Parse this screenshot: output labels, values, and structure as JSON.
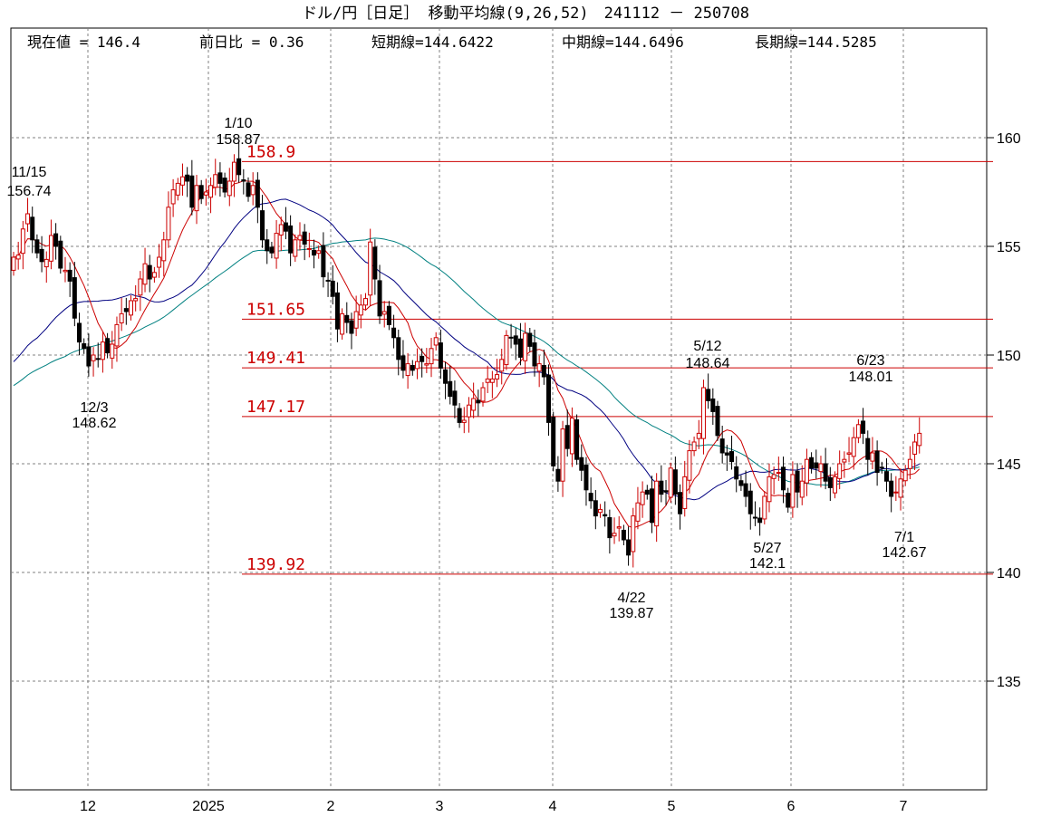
{
  "chart_data": {
    "type": "candlestick",
    "title": "ドル/円［日足］ 移動平均線(9,26,52)　241112 － 250708",
    "info": {
      "current": "現在値 = 146.4",
      "change": "前日比 = 0.36",
      "short": "短期線=144.6422",
      "mid": "中期線=144.6496",
      "long": "長期線=144.5285"
    },
    "ylim": [
      130,
      163
    ],
    "yticks": [
      "135",
      "140",
      "145",
      "150",
      "155",
      "160"
    ],
    "xticks": [
      "12",
      "2025",
      "2",
      "3",
      "4",
      "5",
      "6",
      "7"
    ],
    "levels": [
      158.9,
      151.65,
      149.41,
      147.17,
      139.92
    ],
    "level_labels": [
      "158.9",
      "151.65",
      "149.41",
      "147.17",
      "139.92"
    ],
    "annotations": [
      {
        "date": "11/15",
        "value": "156.74"
      },
      {
        "date": "12/3",
        "value": "148.62"
      },
      {
        "date": "1/10",
        "value": "158.87"
      },
      {
        "date": "4/22",
        "value": "139.87"
      },
      {
        "date": "5/12",
        "value": "148.64"
      },
      {
        "date": "5/27",
        "value": "142.1"
      },
      {
        "date": "6/23",
        "value": "148.01"
      },
      {
        "date": "7/1",
        "value": "142.67"
      }
    ],
    "colors": {
      "up": "#cc0000",
      "down": "#000000",
      "short_ma": "#cc0000",
      "mid_ma": "#000080",
      "long_ma": "#008080",
      "level": "#cc0000",
      "grid": "#808080"
    },
    "series_close": [
      154.5,
      154.6,
      155.8,
      156.5,
      155.3,
      154.7,
      154.3,
      154.4,
      155.5,
      155.0,
      154.0,
      153.9,
      153.4,
      151.7,
      150.6,
      150.3,
      149.5,
      150.0,
      149.8,
      150.6,
      150.1,
      150.5,
      151.4,
      151.9,
      152.0,
      152.5,
      152.6,
      153.5,
      154.2,
      153.5,
      153.8,
      154.5,
      155.3,
      156.8,
      157.6,
      157.9,
      158.2,
      158.0,
      156.8,
      157.8,
      157.2,
      157.5,
      157.8,
      158.3,
      157.9,
      157.5,
      158.0,
      158.87,
      158.3,
      158.0,
      157.3,
      157.8,
      156.8,
      155.3,
      154.8,
      154.7,
      155.6,
      156.0,
      155.7,
      154.7,
      155.3,
      155.5,
      155.1,
      154.9,
      154.6,
      154.8,
      153.6,
      153.4,
      152.7,
      151.2,
      151.9,
      151.5,
      151.0,
      152.0,
      152.3,
      152.6,
      155.2,
      153.5,
      151.8,
      152.0,
      151.4,
      150.8,
      149.8,
      149.3,
      149.6,
      149.3,
      149.7,
      149.7,
      149.6,
      150.3,
      150.8,
      149.4,
      148.7,
      148.1,
      147.7,
      146.9,
      147.0,
      147.7,
      148.0,
      147.8,
      148.5,
      148.9,
      148.9,
      149.1,
      149.8,
      150.9,
      150.8,
      150.5,
      149.9,
      151.0,
      150.4,
      149.5,
      149.6,
      149.0,
      146.9,
      144.9,
      144.2,
      146.6,
      145.7,
      147.1,
      145.2,
      144.7,
      143.8,
      143.3,
      142.6,
      142.9,
      142.6,
      141.6,
      141.8,
      142.1,
      141.5,
      140.8,
      142.6,
      143.2,
      143.7,
      143.6,
      142.3,
      144.2,
      143.6,
      143.7,
      144.8,
      143.6,
      142.7,
      144.4,
      145.6,
      146.0,
      146.4,
      148.5,
      147.9,
      147.4,
      146.3,
      145.5,
      145.4,
      145.1,
      144.3,
      144.0,
      143.5,
      142.7,
      142.5,
      142.3,
      143.5,
      144.4,
      144.5,
      144.6,
      143.8,
      143.0,
      144.5,
      143.7,
      144.2,
      145.2,
      144.8,
      144.8,
      145.0,
      144.2,
      143.9,
      144.4,
      145.0,
      145.2,
      145.5,
      146.2,
      146.8,
      146.4,
      145.2,
      145.5,
      144.6,
      144.8,
      144.2,
      143.5,
      143.7,
      144.3,
      144.7,
      145.2,
      146.0,
      146.4
    ]
  }
}
